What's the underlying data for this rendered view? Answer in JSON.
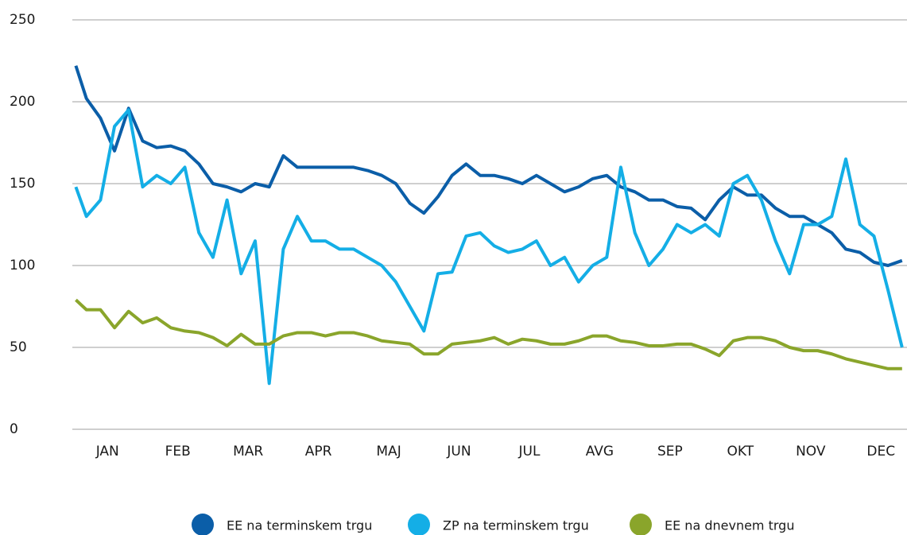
{
  "chart_data": {
    "type": "line",
    "x": [
      0.05,
      0.2,
      0.4,
      0.6,
      0.8,
      1.0,
      1.2,
      1.4,
      1.6,
      1.8,
      2.0,
      2.2,
      2.4,
      2.6,
      2.8,
      3.0,
      3.2,
      3.4,
      3.6,
      3.8,
      4.0,
      4.2,
      4.4,
      4.6,
      4.8,
      5.0,
      5.2,
      5.4,
      5.6,
      5.8,
      6.0,
      6.2,
      6.4,
      6.6,
      6.8,
      7.0,
      7.2,
      7.4,
      7.6,
      7.8,
      8.0,
      8.2,
      8.4,
      8.6,
      8.8,
      9.0,
      9.2,
      9.4,
      9.6,
      9.8,
      10.0,
      10.2,
      10.4,
      10.6,
      10.8,
      11.0,
      11.2,
      11.4,
      11.6,
      11.8
    ],
    "series": [
      {
        "name": "EE na terminskem trgu",
        "color": "#0b5ea8",
        "values": [
          222,
          202,
          190,
          170,
          196,
          176,
          172,
          173,
          170,
          162,
          150,
          148,
          145,
          150,
          148,
          167,
          160,
          160,
          160,
          160,
          160,
          158,
          155,
          150,
          138,
          132,
          142,
          155,
          162,
          155,
          155,
          153,
          150,
          155,
          150,
          145,
          148,
          153,
          155,
          148,
          145,
          140,
          140,
          136,
          135,
          128,
          140,
          148,
          143,
          143,
          135,
          130,
          130,
          125,
          120,
          110,
          108,
          102,
          100,
          103
        ]
      },
      {
        "name": "ZP na terminskem trgu",
        "color": "#14aee6",
        "values": [
          148,
          130,
          140,
          185,
          195,
          148,
          155,
          150,
          160,
          120,
          105,
          140,
          95,
          115,
          28,
          110,
          130,
          115,
          115,
          110,
          110,
          105,
          100,
          90,
          75,
          60,
          95,
          96,
          118,
          120,
          112,
          108,
          110,
          115,
          100,
          105,
          90,
          100,
          105,
          160,
          120,
          100,
          110,
          125,
          120,
          125,
          118,
          150,
          155,
          140,
          115,
          95,
          125,
          125,
          130,
          165,
          125,
          118,
          85,
          50
        ]
      },
      {
        "name": "EE na dnevnem trgu",
        "color": "#8aa52b",
        "values": [
          79,
          73,
          73,
          62,
          72,
          65,
          68,
          62,
          60,
          59,
          56,
          51,
          58,
          52,
          52,
          57,
          59,
          59,
          57,
          59,
          59,
          57,
          54,
          53,
          52,
          46,
          46,
          52,
          53,
          54,
          56,
          52,
          55,
          54,
          52,
          52,
          54,
          57,
          57,
          54,
          53,
          51,
          51,
          52,
          52,
          49,
          45,
          54,
          56,
          56,
          54,
          50,
          48,
          48,
          46,
          43,
          41,
          39,
          37,
          37
        ]
      }
    ],
    "xlim": [
      0,
      11.87
    ],
    "xticks": [
      {
        "value": 0.5,
        "label": "JAN"
      },
      {
        "value": 1.5,
        "label": "FEB"
      },
      {
        "value": 2.5,
        "label": "MAR"
      },
      {
        "value": 3.5,
        "label": "APR"
      },
      {
        "value": 4.5,
        "label": "MAJ"
      },
      {
        "value": 5.5,
        "label": "JUN"
      },
      {
        "value": 6.5,
        "label": "JUL"
      },
      {
        "value": 7.5,
        "label": "AVG"
      },
      {
        "value": 8.5,
        "label": "SEP"
      },
      {
        "value": 9.5,
        "label": "OKT"
      },
      {
        "value": 10.5,
        "label": "NOV"
      },
      {
        "value": 11.5,
        "label": "DEC"
      }
    ],
    "ylim": [
      0,
      250
    ],
    "yticks": [
      0,
      50,
      100,
      150,
      200,
      250
    ],
    "grid": true,
    "legend": "bottom"
  }
}
